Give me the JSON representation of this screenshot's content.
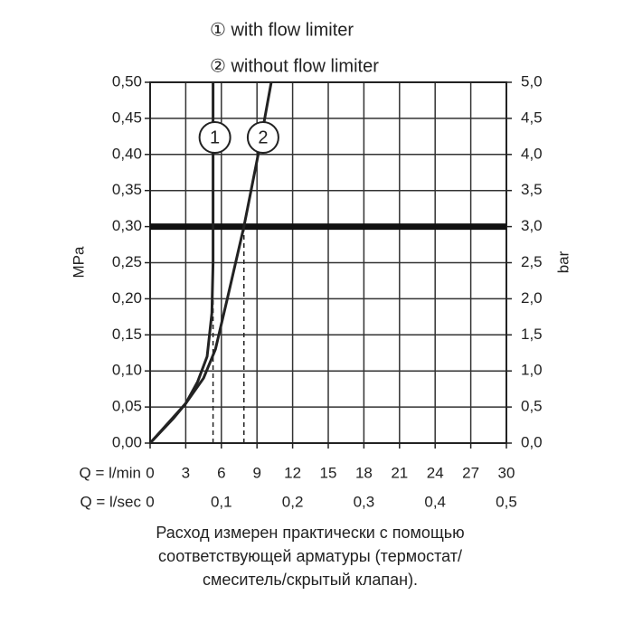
{
  "chart_data": {
    "type": "line",
    "series": [
      {
        "name": "① with flow limiter",
        "label": "1",
        "color": "#222222",
        "x": [
          0,
          2,
          3,
          4,
          4.8,
          5.2,
          5.3,
          5.3
        ],
        "values": [
          0,
          0.035,
          0.055,
          0.085,
          0.12,
          0.18,
          0.25,
          0.5
        ]
      },
      {
        "name": "② without flow limiter",
        "label": "2",
        "color": "#222222",
        "x": [
          0,
          3,
          4.5,
          5.5,
          6.5,
          7.9,
          9.1,
          10.2
        ],
        "values": [
          0,
          0.055,
          0.09,
          0.13,
          0.2,
          0.3,
          0.4,
          0.5
        ]
      }
    ],
    "xlim": [
      0,
      30
    ],
    "xticks": [
      0,
      3,
      6,
      9,
      12,
      15,
      18,
      21,
      24,
      27,
      30
    ],
    "xlabel": "Q = l/min",
    "x2lim": [
      0,
      0.5
    ],
    "x2ticks": [
      0,
      {
        "value": 0.1,
        "label": "0,1"
      },
      {
        "value": 0.2,
        "label": "0,2"
      },
      {
        "value": 0.3,
        "label": "0,3"
      },
      {
        "value": 0.4,
        "label": "0,4"
      },
      {
        "value": 0.5,
        "label": "0,5"
      }
    ],
    "x2label": "Q = l/sec",
    "ylim": [
      0,
      0.5
    ],
    "ylabel": "MPa",
    "yticks": [
      {
        "value": 0,
        "label": "0,00"
      },
      {
        "value": 0.05,
        "label": "0,05"
      },
      {
        "value": 0.1,
        "label": "0,10"
      },
      {
        "value": 0.15,
        "label": "0,15"
      },
      {
        "value": 0.2,
        "label": "0,20"
      },
      {
        "value": 0.25,
        "label": "0,25"
      },
      {
        "value": 0.3,
        "label": "0,30"
      },
      {
        "value": 0.35,
        "label": "0,35"
      },
      {
        "value": 0.4,
        "label": "0,40"
      },
      {
        "value": 0.45,
        "label": "0,45"
      },
      {
        "value": 0.5,
        "label": "0,50"
      }
    ],
    "y2lim": [
      0,
      5
    ],
    "y2label": "bar",
    "y2ticks": [
      {
        "value": 0,
        "label": "0,0"
      },
      {
        "value": 0.5,
        "label": "0,5"
      },
      {
        "value": 1,
        "label": "1,0"
      },
      {
        "value": 1.5,
        "label": "1,5"
      },
      {
        "value": 2,
        "label": "2,0"
      },
      {
        "value": 2.5,
        "label": "2,5"
      },
      {
        "value": 3,
        "label": "3,0"
      },
      {
        "value": 3.5,
        "label": "3,5"
      },
      {
        "value": 4,
        "label": "4,0"
      },
      {
        "value": 4.5,
        "label": "4,5"
      },
      {
        "value": 5,
        "label": "5,0"
      }
    ],
    "hline": 0.3,
    "drop_lines": [
      {
        "x": 5.3,
        "y": 0.2
      },
      {
        "x": 7.9,
        "y": 0.3
      }
    ],
    "grid": true,
    "caption": [
      "Расход измерен практически с помощью",
      "соответствующей арматуры (термостат/",
      "смеситель/скрытый клапан)."
    ]
  }
}
